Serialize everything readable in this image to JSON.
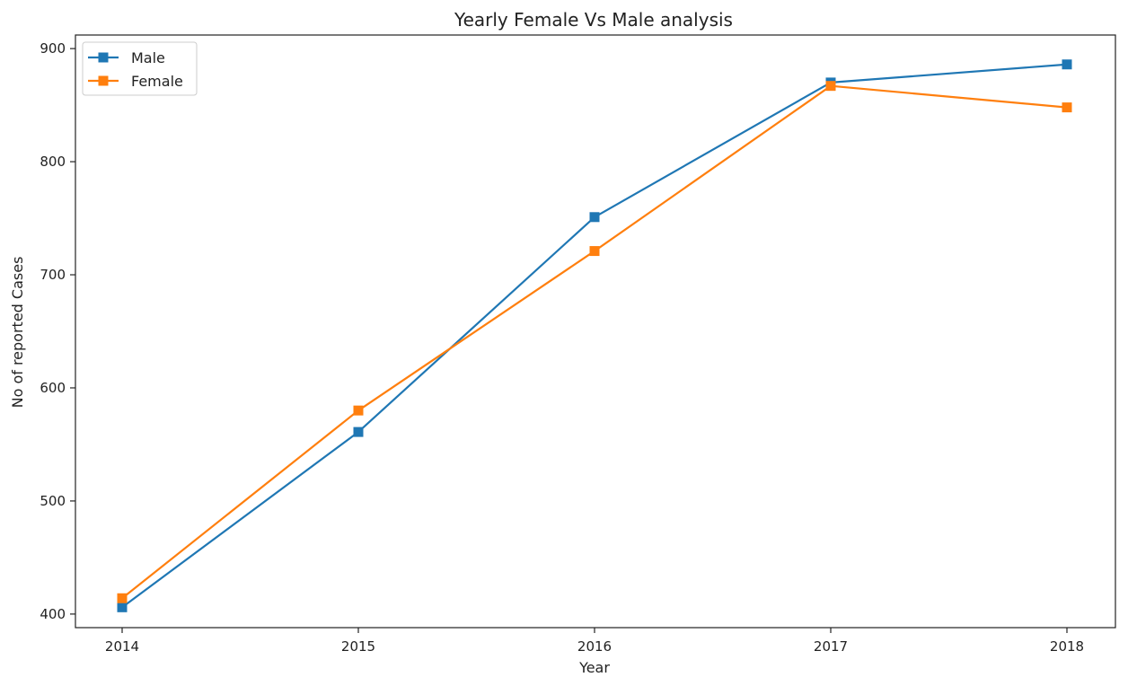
{
  "chart_data": {
    "type": "line",
    "title": "Yearly Female Vs Male analysis",
    "xlabel": "Year",
    "ylabel": "No of reported Cases",
    "x": [
      "2014",
      "2015",
      "2016",
      "2017",
      "2018"
    ],
    "yticks": [
      "400",
      "500",
      "600",
      "700",
      "800",
      "900"
    ],
    "ylim": [
      388,
      912
    ],
    "grid": false,
    "legend_position": "top-left",
    "marker": "square",
    "series": [
      {
        "name": "Male",
        "color": "#1f77b4",
        "values": [
          406,
          561,
          751,
          870,
          886
        ]
      },
      {
        "name": "Female",
        "color": "#ff7f0e",
        "values": [
          414,
          580,
          721,
          867,
          848
        ]
      }
    ]
  }
}
